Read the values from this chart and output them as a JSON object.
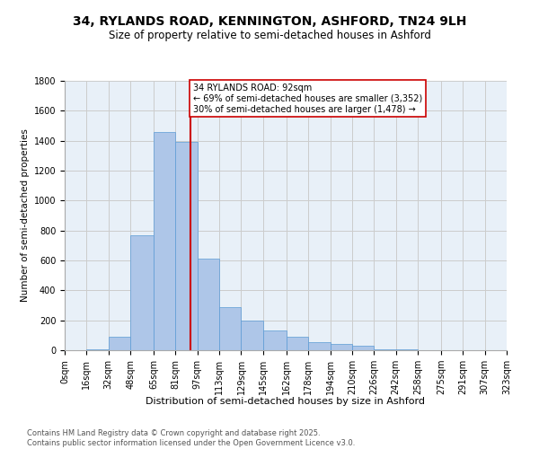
{
  "title1": "34, RYLANDS ROAD, KENNINGTON, ASHFORD, TN24 9LH",
  "title2": "Size of property relative to semi-detached houses in Ashford",
  "xlabel": "Distribution of semi-detached houses by size in Ashford",
  "ylabel": "Number of semi-detached properties",
  "bin_labels": [
    "0sqm",
    "16sqm",
    "32sqm",
    "48sqm",
    "65sqm",
    "81sqm",
    "97sqm",
    "113sqm",
    "129sqm",
    "145sqm",
    "162sqm",
    "178sqm",
    "194sqm",
    "210sqm",
    "226sqm",
    "242sqm",
    "258sqm",
    "275sqm",
    "291sqm",
    "307sqm",
    "323sqm"
  ],
  "bin_edges": [
    0,
    16,
    32,
    48,
    65,
    81,
    97,
    113,
    129,
    145,
    162,
    178,
    194,
    210,
    226,
    242,
    258,
    275,
    291,
    307,
    323
  ],
  "bar_heights": [
    0,
    5,
    90,
    770,
    1460,
    1390,
    610,
    290,
    200,
    130,
    90,
    55,
    40,
    30,
    5,
    5,
    0,
    0,
    0,
    0
  ],
  "bar_color": "#aec6e8",
  "bar_edge_color": "#5b9bd5",
  "property_value": 92,
  "vline_color": "#cc0000",
  "annotation_text": "34 RYLANDS ROAD: 92sqm\n← 69% of semi-detached houses are smaller (3,352)\n30% of semi-detached houses are larger (1,478) →",
  "annotation_box_color": "#ffffff",
  "annotation_border_color": "#cc0000",
  "ylim": [
    0,
    1800
  ],
  "yticks": [
    0,
    200,
    400,
    600,
    800,
    1000,
    1200,
    1400,
    1600,
    1800
  ],
  "grid_color": "#cccccc",
  "background_color": "#e8f0f8",
  "footnote": "Contains HM Land Registry data © Crown copyright and database right 2025.\nContains public sector information licensed under the Open Government Licence v3.0.",
  "title1_fontsize": 10,
  "title2_fontsize": 8.5,
  "xlabel_fontsize": 8,
  "ylabel_fontsize": 7.5,
  "tick_fontsize": 7,
  "annotation_fontsize": 7,
  "footnote_fontsize": 6
}
